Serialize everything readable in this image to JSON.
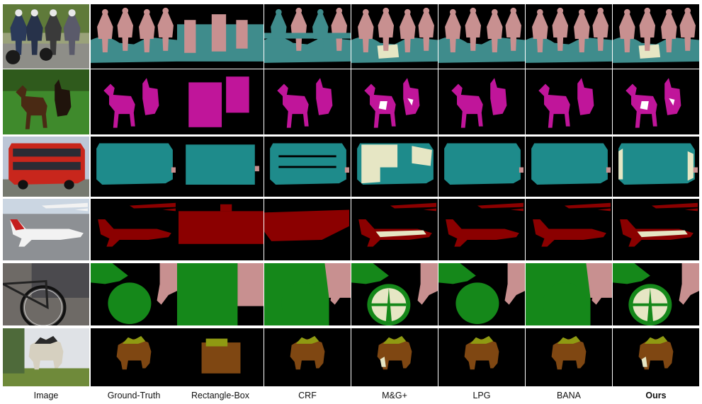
{
  "figure": {
    "columns": [
      {
        "label": "Image",
        "bold": false
      },
      {
        "label": "Ground-Truth",
        "bold": false
      },
      {
        "label": "Rectangle-Box",
        "bold": false
      },
      {
        "label": "CRF",
        "bold": false
      },
      {
        "label": "M&G+",
        "bold": false
      },
      {
        "label": "LPG",
        "bold": false
      },
      {
        "label": "BANA",
        "bold": false
      },
      {
        "label": "Ours",
        "bold": true
      }
    ],
    "rows": [
      {
        "subject": "person-motorbike",
        "mask_colors": [
          "#3f8c8c",
          "#c89090",
          "#e6e6c4"
        ]
      },
      {
        "subject": "horse",
        "mask_colors": [
          "#c0159a",
          "#ffffff"
        ]
      },
      {
        "subject": "bus",
        "mask_colors": [
          "#1e8b8b",
          "#e6e6c4"
        ]
      },
      {
        "subject": "aeroplane",
        "mask_colors": [
          "#8b0000",
          "#e6e6c4"
        ]
      },
      {
        "subject": "bicycle",
        "mask_colors": [
          "#15881a",
          "#c89090",
          "#e6e6c4"
        ]
      },
      {
        "subject": "sheep",
        "mask_colors": [
          "#7f4712",
          "#8f9a12",
          "#e6e6c4"
        ]
      }
    ]
  }
}
